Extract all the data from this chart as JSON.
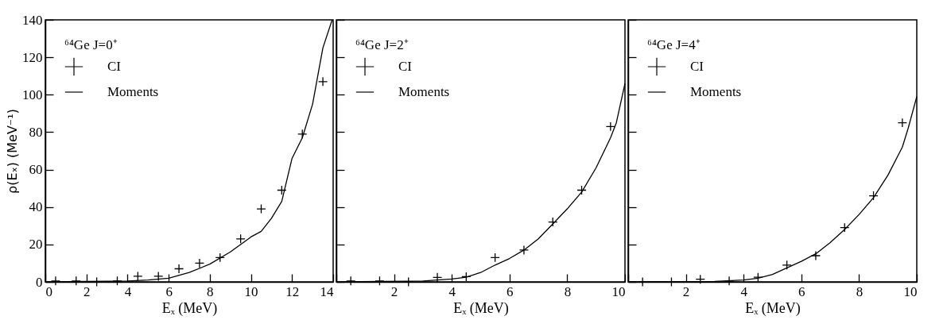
{
  "chart_data": [
    {
      "type": "scatter",
      "legend_title": "⁶⁴Ge J=0⁺",
      "xlabel": "Eₓ (MeV)",
      "ylabel": "ρ(Eₓ) (MeV⁻¹)",
      "xlim": [
        0,
        14
      ],
      "xticks": [
        0,
        2,
        4,
        6,
        8,
        10,
        12,
        14
      ],
      "ylim": [
        0,
        140
      ],
      "yticks": [
        0,
        20,
        40,
        60,
        80,
        100,
        120,
        140
      ],
      "legend": "top left",
      "series": [
        {
          "name": "CI",
          "marker": "cross",
          "color": "#000000",
          "x": [
            0.5,
            1.5,
            2.5,
            3.5,
            4.5,
            5.5,
            6.5,
            7.5,
            8.5,
            9.5,
            10.5,
            11.5,
            12.5,
            13.5
          ],
          "values": [
            0.5,
            0.5,
            0,
            0.5,
            3,
            3,
            7,
            10,
            13,
            23,
            39,
            49,
            79,
            107
          ]
        },
        {
          "name": "Moments",
          "type": "line",
          "marker": "none",
          "line_style": "solid",
          "color": "#000000",
          "x": [
            0,
            4,
            5,
            6,
            7,
            8,
            9,
            10,
            10.5,
            11,
            11.5,
            12,
            12.5,
            13,
            13.3,
            13.5,
            13.95
          ],
          "values": [
            0,
            0.5,
            1,
            2,
            5,
            9.5,
            16,
            24,
            27,
            34,
            43,
            66,
            77,
            95,
            113,
            125,
            140
          ]
        }
      ]
    },
    {
      "type": "scatter",
      "legend_title": "⁶⁴Ge J=2⁺",
      "xlabel": "Eₓ (MeV)",
      "xlim": [
        0,
        10
      ],
      "xticks": [
        {
          "value": 0,
          "label": null
        },
        2,
        4,
        6,
        8,
        10
      ],
      "ylim": [
        0,
        140
      ],
      "yticks": [
        0,
        20,
        40,
        60,
        80,
        100,
        120,
        140
      ],
      "tick_labels": "x",
      "legend": "top left",
      "series": [
        {
          "name": "CI",
          "marker": "cross",
          "color": "#000000",
          "x": [
            0.5,
            1.5,
            2.5,
            3.5,
            4.5,
            5.5,
            6.5,
            7.5,
            8.5,
            9.5
          ],
          "values": [
            0.5,
            0.5,
            0,
            2.4,
            2.8,
            13,
            17,
            32,
            49,
            83
          ]
        },
        {
          "name": "Moments",
          "type": "line",
          "marker": "none",
          "line_style": "solid",
          "color": "#000000",
          "x": [
            0,
            3,
            4,
            4.5,
            5,
            5.5,
            6,
            6.5,
            7,
            7.5,
            8,
            8.5,
            9,
            9.5,
            9.7,
            10
          ],
          "values": [
            0,
            0.5,
            1.5,
            2.5,
            5,
            9,
            12.5,
            17,
            23,
            31,
            39,
            48,
            61,
            77,
            85,
            106
          ]
        }
      ]
    },
    {
      "type": "scatter",
      "legend_title": "⁶⁴Ge J=4⁺",
      "xlabel": "Eₓ (MeV)",
      "xlim": [
        0,
        10
      ],
      "xticks": [
        {
          "value": 0,
          "label": null
        },
        2,
        4,
        6,
        8,
        10
      ],
      "ylim": [
        0,
        140
      ],
      "yticks": [
        0,
        20,
        40,
        60,
        80,
        100,
        120,
        140
      ],
      "tick_labels": "x",
      "legend": "top left",
      "series": [
        {
          "name": "CI",
          "marker": "cross",
          "color": "#000000",
          "x": [
            0.5,
            1.5,
            2.5,
            3.5,
            4.5,
            5.5,
            6.5,
            7.5,
            8.5,
            9.5
          ],
          "values": [
            0,
            0,
            1.4,
            0.5,
            2.5,
            9,
            14,
            29,
            46,
            85
          ]
        },
        {
          "name": "Moments",
          "type": "line",
          "marker": "none",
          "line_style": "solid",
          "color": "#000000",
          "x": [
            0,
            3,
            4,
            4.5,
            5,
            5.5,
            6,
            6.5,
            7,
            7.5,
            8,
            8.5,
            9,
            9.5,
            9.7,
            10
          ],
          "values": [
            0,
            0.3,
            1,
            2,
            4,
            7.5,
            11,
            15,
            21,
            28,
            36,
            45,
            57,
            72,
            82,
            99
          ]
        }
      ]
    }
  ]
}
